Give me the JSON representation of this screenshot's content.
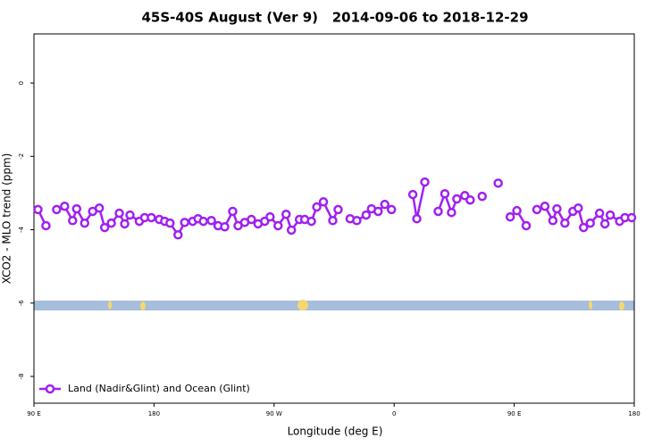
{
  "chart_data": {
    "type": "line",
    "title": "45S-40S August (Ver 9)   2014-09-06 to 2018-12-29",
    "x_label": "Longitude (deg E)",
    "y_label": "XCO2 - MLO trend (ppm)",
    "x": [
      93,
      99,
      103,
      107,
      113,
      119,
      122,
      128,
      134,
      139,
      143,
      148,
      154,
      158,
      162,
      169,
      173,
      178,
      184,
      188,
      192,
      198,
      203,
      209,
      213,
      217,
      223,
      228,
      233,
      239,
      243,
      248,
      253,
      258,
      263,
      267,
      273,
      279,
      283,
      289,
      293,
      298,
      302,
      307,
      314,
      318,
      322,
      327,
      332,
      339,
      343,
      348,
      353,
      358,
      366,
      374,
      377,
      383,
      388,
      393,
      398,
      403,
      407,
      413,
      417,
      421,
      426,
      432,
      438,
      442,
      447,
      452,
      459,
      463,
      467,
      473,
      479,
      482,
      488,
      494,
      498,
      502,
      507,
      514,
      518,
      522,
      529,
      533,
      538
    ],
    "series": [
      {
        "name": "Land (Nadir&Glint) and Ocean (Glint)",
        "color": "#a020f0",
        "values": [
          -3.45,
          -3.89,
          null,
          -3.45,
          -3.36,
          -3.75,
          -3.43,
          -3.82,
          -3.5,
          -3.41,
          -3.94,
          -3.82,
          -3.55,
          -3.84,
          -3.6,
          -3.77,
          -3.67,
          -3.67,
          -3.72,
          -3.77,
          -3.82,
          -4.14,
          -3.8,
          -3.77,
          -3.7,
          -3.77,
          -3.75,
          -3.89,
          -3.92,
          -3.5,
          -3.89,
          -3.8,
          -3.72,
          -3.84,
          -3.77,
          -3.65,
          -3.89,
          -3.58,
          -4.01,
          -3.72,
          -3.72,
          -3.77,
          -3.38,
          -3.24,
          -3.75,
          -3.45,
          null,
          -3.7,
          -3.75,
          -3.6,
          -3.43,
          -3.5,
          -3.31,
          -3.45,
          null,
          -3.04,
          -3.7,
          -2.7,
          null,
          -3.5,
          -3.02,
          -3.53,
          -3.16,
          -3.07,
          -3.19,
          null,
          -3.09,
          null,
          -2.73,
          null,
          -3.65,
          -3.48,
          -3.89,
          null,
          -3.45,
          -3.36,
          -3.75,
          -3.43,
          -3.82,
          -3.5,
          -3.41,
          -3.94,
          -3.82,
          -3.55,
          -3.84,
          -3.6,
          -3.77,
          -3.67,
          -3.67
        ]
      }
    ],
    "xlim": [
      90,
      540
    ],
    "xticks": [
      {
        "value": 90,
        "label": "90 E"
      },
      {
        "value": 180,
        "label": "180"
      },
      {
        "value": 270,
        "label": "90 W"
      },
      {
        "value": 360,
        "label": "0"
      },
      {
        "value": 450,
        "label": "90 E"
      },
      {
        "value": 540,
        "label": "180"
      }
    ],
    "ylim": [
      -8.73,
      1.34
    ],
    "yticks": [
      0,
      -2,
      -4,
      -6,
      -8
    ],
    "legend": "bottom-left"
  }
}
